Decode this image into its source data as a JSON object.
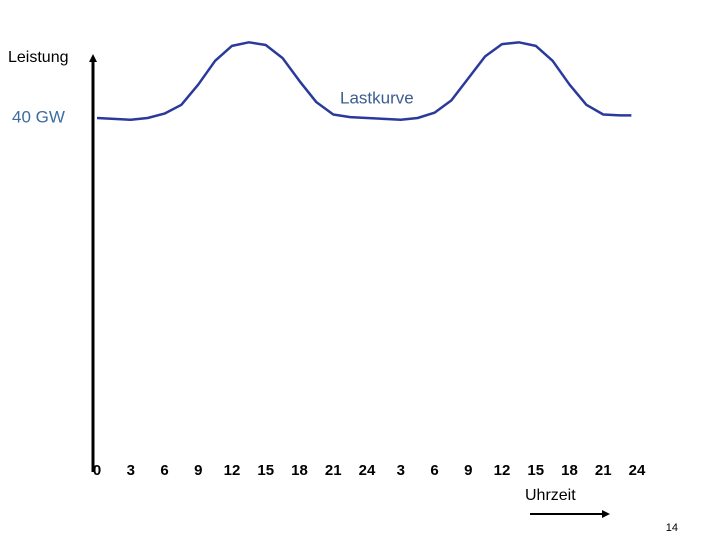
{
  "chart_data": {
    "type": "line",
    "y_label": "Leistung",
    "x_label": "Uhrzeit",
    "page_number": "14",
    "xlim": [
      0,
      48
    ],
    "xticks": [
      0,
      3,
      6,
      9,
      12,
      15,
      18,
      21,
      24,
      {
        "value": 27,
        "label": "3"
      },
      {
        "value": 30,
        "label": "6"
      },
      {
        "value": 33,
        "label": "9"
      },
      {
        "value": 36,
        "label": "12"
      },
      {
        "value": 39,
        "label": "15"
      },
      {
        "value": 42,
        "label": "18"
      },
      {
        "value": 45,
        "label": "21"
      },
      {
        "value": 48,
        "label": "24"
      }
    ],
    "ylim": [
      0,
      50
    ],
    "yticks": [
      {
        "value": 40,
        "label": "40 GW"
      }
    ],
    "x": [
      0,
      1.5,
      3,
      4.5,
      6,
      7.5,
      9,
      10.5,
      12,
      13.5,
      15,
      16.5,
      18,
      19.5,
      21,
      22.5,
      24,
      25.5,
      27,
      28.5,
      30,
      31.5,
      33,
      34.5,
      36,
      37.5,
      39,
      40.5,
      42,
      43.5,
      45,
      46.5,
      47.5
    ],
    "series": [
      {
        "name": "Lastkurve",
        "color": "#2a3a9c",
        "values": [
          40.0,
          39.9,
          39.8,
          40.0,
          40.5,
          41.5,
          43.8,
          46.5,
          48.2,
          48.6,
          48.3,
          46.8,
          44.2,
          41.8,
          40.4,
          40.1,
          40.0,
          39.9,
          39.8,
          40.0,
          40.6,
          42.0,
          44.5,
          47.0,
          48.4,
          48.6,
          48.2,
          46.5,
          43.8,
          41.5,
          40.4,
          40.3,
          40.3
        ]
      }
    ]
  }
}
